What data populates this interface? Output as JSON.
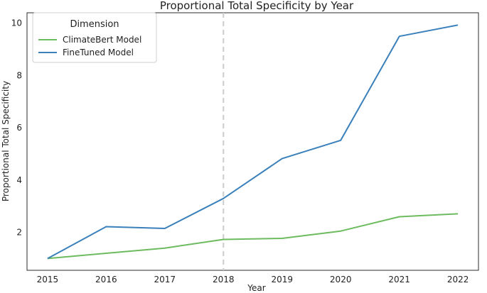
{
  "chart_data": {
    "type": "line",
    "title": "Proportional Total Specificity by Year",
    "xlabel": "Year",
    "ylabel": "Proportional Total Specificity",
    "x": [
      2015,
      2016,
      2017,
      2018,
      2019,
      2020,
      2021,
      2022
    ],
    "xlim": [
      2014.65,
      2022.35
    ],
    "ylim": [
      0.55,
      10.4
    ],
    "yticks": [
      2,
      4,
      6,
      8,
      10
    ],
    "grid": false,
    "reference_line": {
      "x": 2018,
      "style": "dashed",
      "color": "#cccccc"
    },
    "legend": {
      "title": "Dimension",
      "placement": "top-left"
    },
    "series": [
      {
        "name": "ClimateBert Model",
        "color": "#6dbb5f",
        "values": [
          1.0,
          1.2,
          1.4,
          1.73,
          1.77,
          2.05,
          2.6,
          2.71
        ]
      },
      {
        "name": "FineTuned Model",
        "color": "#3a80ba",
        "values": [
          1.0,
          2.22,
          2.15,
          3.3,
          4.82,
          5.52,
          9.5,
          9.93
        ]
      }
    ]
  }
}
